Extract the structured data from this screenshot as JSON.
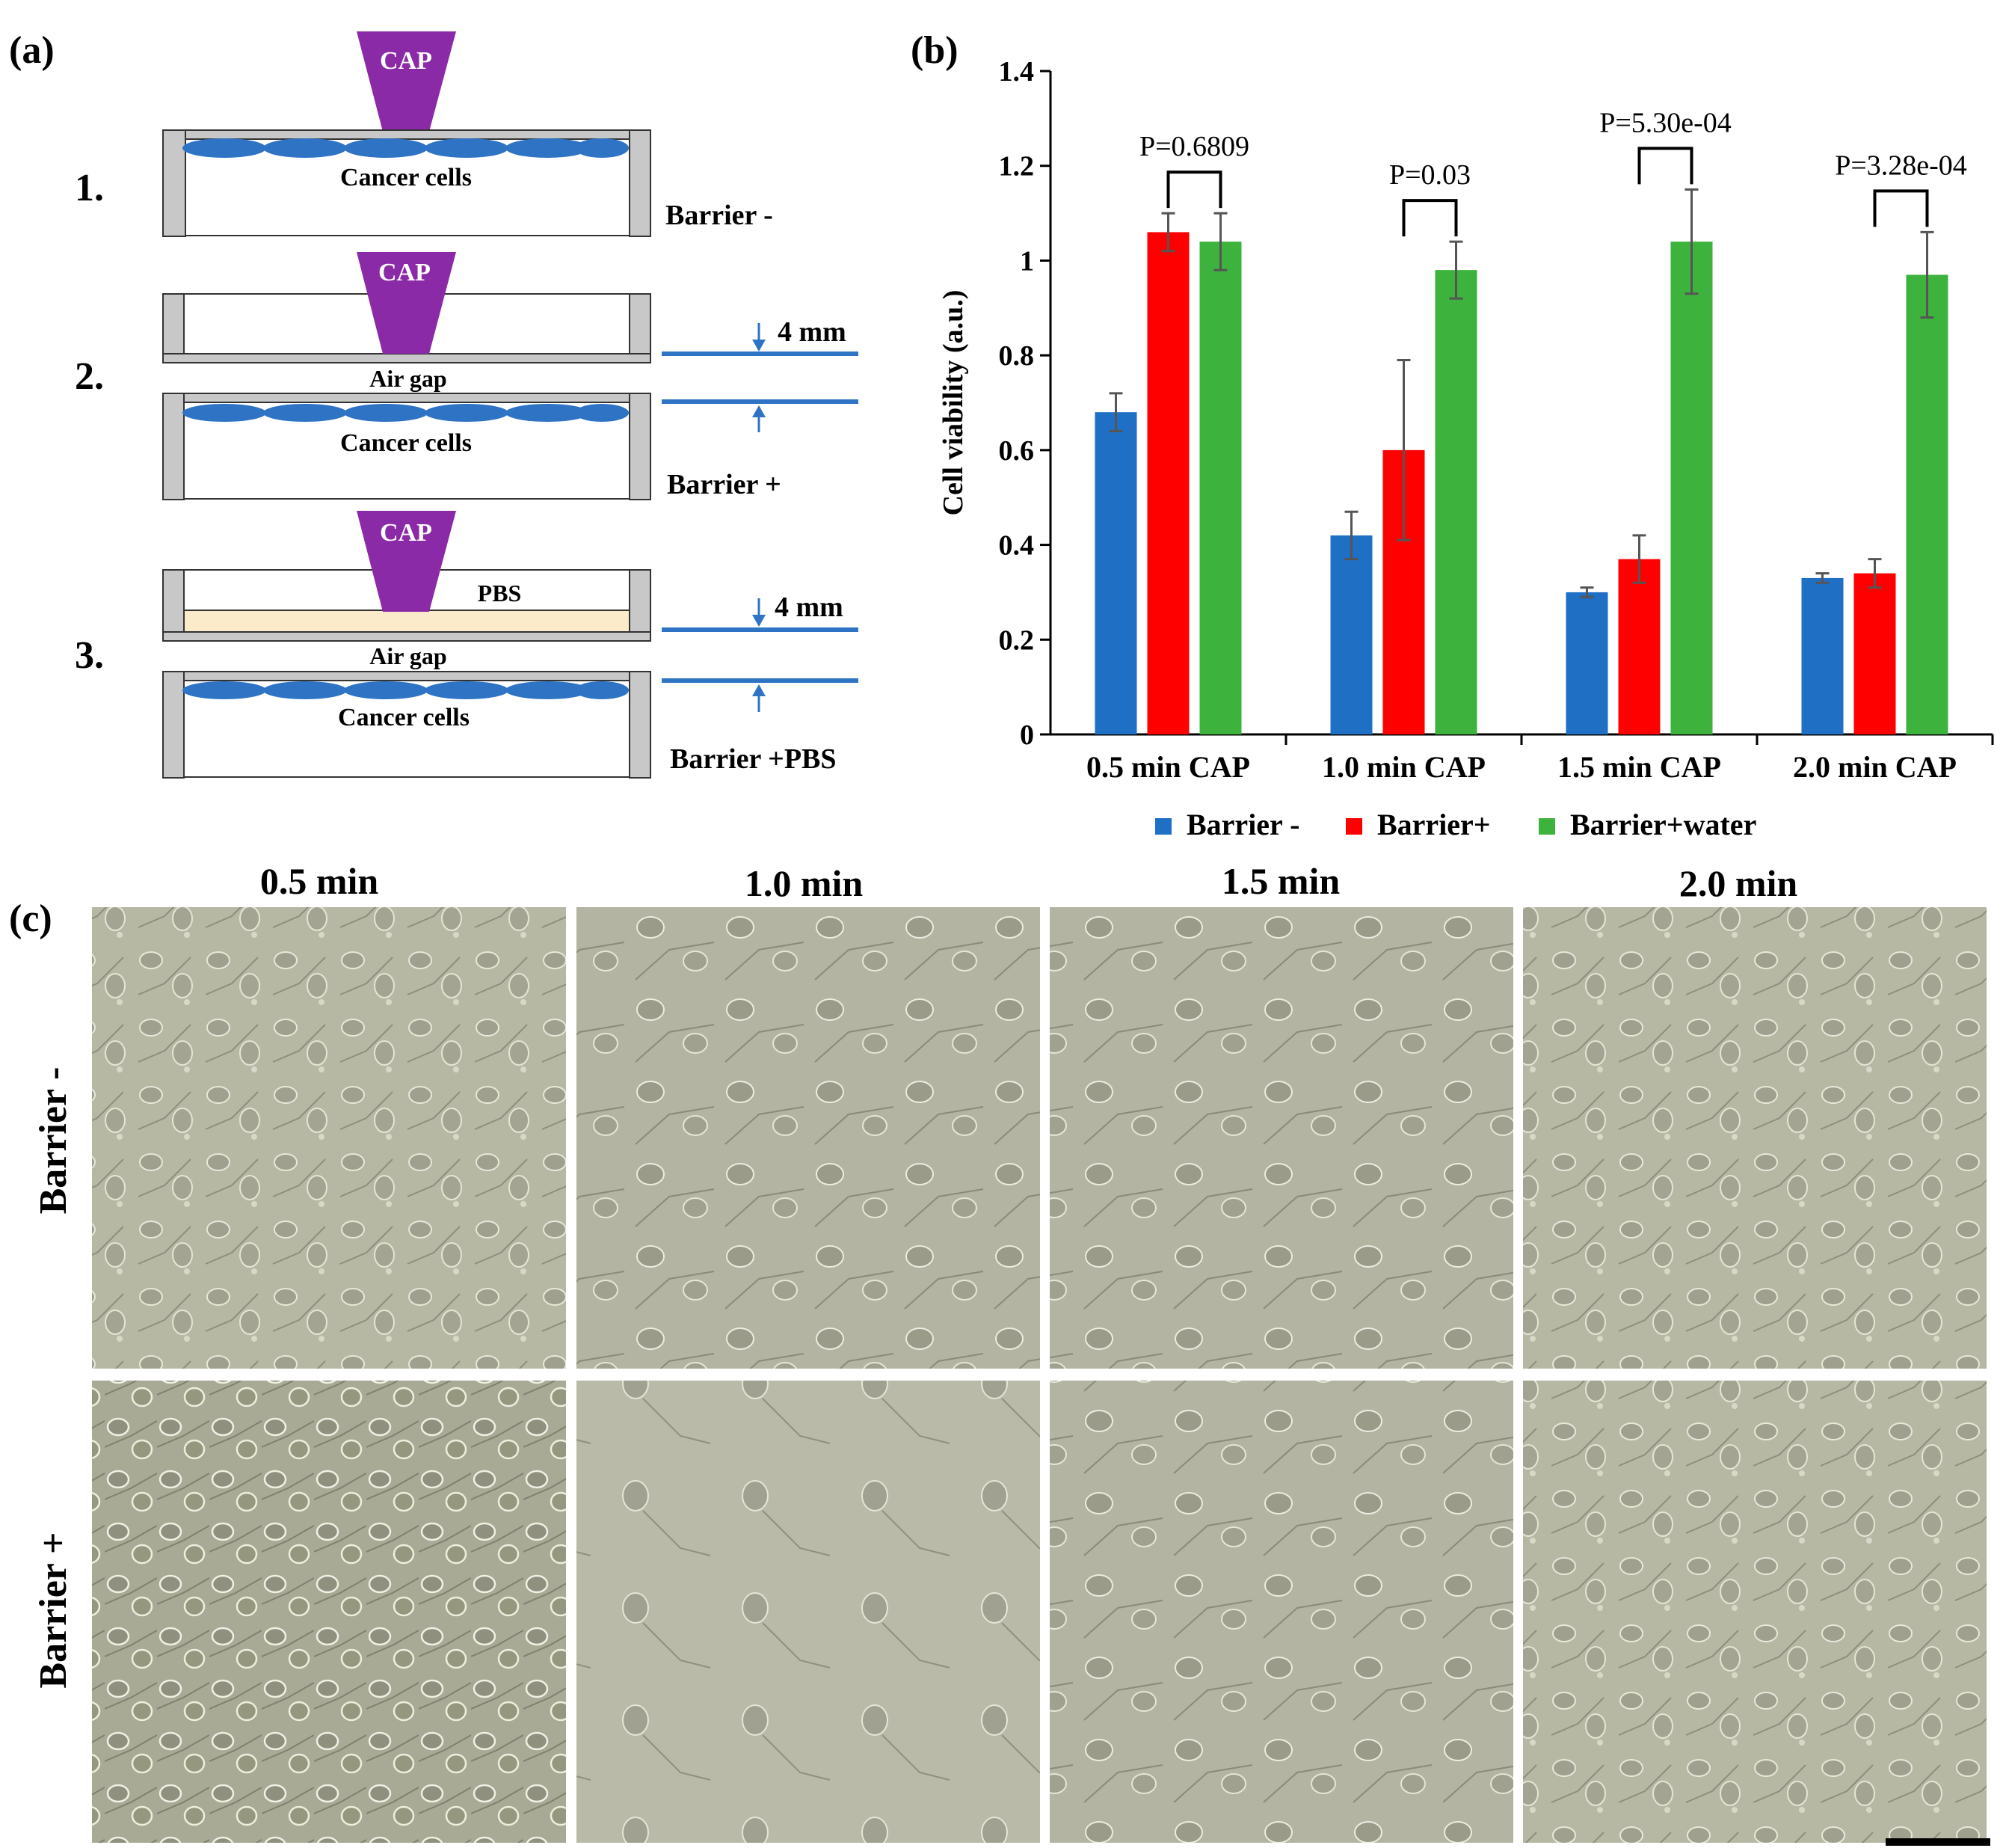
{
  "panel_labels": {
    "a": "(a)",
    "b": "(b)",
    "c": "(c)"
  },
  "panel_a": {
    "cap": "CAP",
    "step1": {
      "number": "1.",
      "cells": "Cancer cells",
      "label": "Barrier -"
    },
    "step2": {
      "number": "2.",
      "air_gap": "Air gap",
      "cells": "Cancer cells",
      "distance": "4 mm",
      "label": "Barrier +"
    },
    "step3": {
      "number": "3.",
      "pbs": "PBS",
      "air_gap": "Air gap",
      "cells": "Cancer cells",
      "distance": "4 mm",
      "label": "Barrier +PBS"
    },
    "colors": {
      "cap": "#8b2aa6",
      "cells": "#2e73c4",
      "pbs": "#fbebcb",
      "wall": "#c8c8c8",
      "arrow": "#2e73c4"
    }
  },
  "chart_data": {
    "type": "bar",
    "title": "",
    "ylabel": "Cell viability (a.u.)",
    "xlabel": "",
    "ylim": [
      0,
      1.4
    ],
    "yticks": [
      "0",
      "0.2",
      "0.4",
      "0.6",
      "0.8",
      "1",
      "1.2",
      "1.4"
    ],
    "ytick_values": [
      0,
      0.2,
      0.4,
      0.6,
      0.8,
      1.0,
      1.2,
      1.4
    ],
    "categories": [
      "0.5 min CAP",
      "1.0 min CAP",
      "1.5 min CAP",
      "2.0 min CAP"
    ],
    "series": [
      {
        "name": "Barrier -",
        "color": "#1f6fc5",
        "values": [
          0.68,
          0.42,
          0.3,
          0.33
        ],
        "errors": [
          0.04,
          0.05,
          0.01,
          0.01
        ]
      },
      {
        "name": "Barrier+",
        "color": "#ff0000",
        "values": [
          1.06,
          0.6,
          0.37,
          0.34
        ],
        "errors": [
          0.04,
          0.19,
          0.05,
          0.03
        ]
      },
      {
        "name": "Barrier+water",
        "color": "#3db33d",
        "values": [
          1.04,
          0.98,
          1.04,
          0.97
        ],
        "errors": [
          0.06,
          0.06,
          0.11,
          0.09
        ]
      }
    ],
    "annotations": [
      "P=0.6809",
      "P=0.03",
      "P=5.30e-04",
      "P=3.28e-04"
    ],
    "grid": false,
    "legend_position": "bottom"
  },
  "panel_c": {
    "columns": [
      "0.5 min",
      "1.0 min",
      "1.5 min",
      "2.0 min"
    ],
    "rows": [
      "Barrier -",
      "Barrier +"
    ]
  }
}
